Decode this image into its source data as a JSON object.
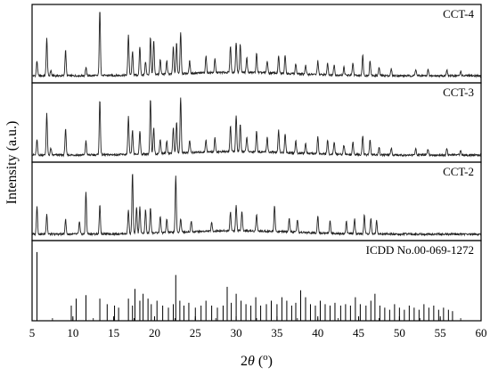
{
  "chart_data": {
    "type": "line",
    "xlabel_parts": [
      "2",
      "θ",
      " (",
      "o",
      ")"
    ],
    "ylabel": "Intensity (a.u.)",
    "xlim": [
      5,
      60
    ],
    "xticks": [
      5,
      10,
      15,
      20,
      25,
      30,
      35,
      40,
      45,
      50,
      55,
      60
    ],
    "grid": false,
    "legend": "none",
    "series": [
      {
        "name": "CCT-4",
        "baseline": 0.05,
        "peaks": [
          [
            5.6,
            0.22
          ],
          [
            6.8,
            0.55
          ],
          [
            7.3,
            0.08
          ],
          [
            9.1,
            0.38
          ],
          [
            11.6,
            0.12
          ],
          [
            13.3,
            0.99
          ],
          [
            16.8,
            0.6
          ],
          [
            17.3,
            0.35
          ],
          [
            18.2,
            0.42
          ],
          [
            18.9,
            0.2
          ],
          [
            19.5,
            0.55
          ],
          [
            19.9,
            0.5
          ],
          [
            20.7,
            0.22
          ],
          [
            21.5,
            0.2
          ],
          [
            22.3,
            0.4
          ],
          [
            22.7,
            0.45
          ],
          [
            23.2,
            0.62
          ],
          [
            24.3,
            0.18
          ],
          [
            26.3,
            0.25
          ],
          [
            27.4,
            0.2
          ],
          [
            29.3,
            0.4
          ],
          [
            30.0,
            0.45
          ],
          [
            30.5,
            0.42
          ],
          [
            31.3,
            0.22
          ],
          [
            32.5,
            0.28
          ],
          [
            33.8,
            0.18
          ],
          [
            35.2,
            0.25
          ],
          [
            36.0,
            0.28
          ],
          [
            37.3,
            0.15
          ],
          [
            38.5,
            0.13
          ],
          [
            40.0,
            0.2
          ],
          [
            41.2,
            0.18
          ],
          [
            42.0,
            0.15
          ],
          [
            43.2,
            0.12
          ],
          [
            44.3,
            0.18
          ],
          [
            45.5,
            0.3
          ],
          [
            46.4,
            0.22
          ],
          [
            47.5,
            0.12
          ],
          [
            49.0,
            0.1
          ],
          [
            52.0,
            0.1
          ],
          [
            53.5,
            0.09
          ],
          [
            55.8,
            0.09
          ],
          [
            57.5,
            0.07
          ]
        ]
      },
      {
        "name": "CCT-3",
        "baseline": 0.05,
        "peaks": [
          [
            5.6,
            0.22
          ],
          [
            6.8,
            0.6
          ],
          [
            7.3,
            0.1
          ],
          [
            9.1,
            0.38
          ],
          [
            11.6,
            0.2
          ],
          [
            13.3,
            0.8
          ],
          [
            16.8,
            0.55
          ],
          [
            17.3,
            0.35
          ],
          [
            18.2,
            0.35
          ],
          [
            19.5,
            0.8
          ],
          [
            19.9,
            0.38
          ],
          [
            20.7,
            0.22
          ],
          [
            21.5,
            0.18
          ],
          [
            22.3,
            0.38
          ],
          [
            22.7,
            0.45
          ],
          [
            23.2,
            0.82
          ],
          [
            24.3,
            0.18
          ],
          [
            26.3,
            0.18
          ],
          [
            27.4,
            0.2
          ],
          [
            29.3,
            0.38
          ],
          [
            30.0,
            0.52
          ],
          [
            30.5,
            0.4
          ],
          [
            31.3,
            0.22
          ],
          [
            32.5,
            0.3
          ],
          [
            33.8,
            0.22
          ],
          [
            35.2,
            0.32
          ],
          [
            36.0,
            0.28
          ],
          [
            37.3,
            0.18
          ],
          [
            38.5,
            0.15
          ],
          [
            40.0,
            0.25
          ],
          [
            41.2,
            0.2
          ],
          [
            42.0,
            0.18
          ],
          [
            43.2,
            0.14
          ],
          [
            44.3,
            0.18
          ],
          [
            45.5,
            0.28
          ],
          [
            46.4,
            0.22
          ],
          [
            47.5,
            0.12
          ],
          [
            49.0,
            0.1
          ],
          [
            52.0,
            0.1
          ],
          [
            53.5,
            0.09
          ],
          [
            55.8,
            0.1
          ],
          [
            57.5,
            0.07
          ]
        ]
      },
      {
        "name": "CCT-2",
        "baseline": 0.04,
        "peaks": [
          [
            5.6,
            0.42
          ],
          [
            6.8,
            0.3
          ],
          [
            9.1,
            0.22
          ],
          [
            10.8,
            0.18
          ],
          [
            11.6,
            0.62
          ],
          [
            13.3,
            0.42
          ],
          [
            16.8,
            0.35
          ],
          [
            17.3,
            0.9
          ],
          [
            17.8,
            0.38
          ],
          [
            18.2,
            0.4
          ],
          [
            18.9,
            0.35
          ],
          [
            19.5,
            0.38
          ],
          [
            20.7,
            0.25
          ],
          [
            21.5,
            0.2
          ],
          [
            22.6,
            0.82
          ],
          [
            23.2,
            0.2
          ],
          [
            24.5,
            0.16
          ],
          [
            27.0,
            0.12
          ],
          [
            29.3,
            0.28
          ],
          [
            30.0,
            0.38
          ],
          [
            30.7,
            0.3
          ],
          [
            32.5,
            0.25
          ],
          [
            34.7,
            0.38
          ],
          [
            36.5,
            0.2
          ],
          [
            37.5,
            0.18
          ],
          [
            40.0,
            0.26
          ],
          [
            41.5,
            0.18
          ],
          [
            43.5,
            0.18
          ],
          [
            44.5,
            0.22
          ],
          [
            45.7,
            0.28
          ],
          [
            46.5,
            0.24
          ],
          [
            47.2,
            0.2
          ]
        ]
      },
      {
        "name": "ICDD No.00-069-1272",
        "type": "stick",
        "sticks": [
          [
            5.6,
            0.95
          ],
          [
            9.8,
            0.18
          ],
          [
            10.4,
            0.28
          ],
          [
            11.6,
            0.33
          ],
          [
            13.3,
            0.28
          ],
          [
            14.2,
            0.2
          ],
          [
            15.1,
            0.18
          ],
          [
            15.6,
            0.15
          ],
          [
            16.8,
            0.28
          ],
          [
            17.3,
            0.18
          ],
          [
            17.6,
            0.42
          ],
          [
            18.2,
            0.25
          ],
          [
            18.6,
            0.35
          ],
          [
            19.2,
            0.28
          ],
          [
            19.6,
            0.2
          ],
          [
            20.3,
            0.25
          ],
          [
            21.0,
            0.18
          ],
          [
            21.7,
            0.15
          ],
          [
            22.3,
            0.2
          ],
          [
            22.6,
            0.62
          ],
          [
            23.1,
            0.25
          ],
          [
            23.6,
            0.18
          ],
          [
            24.2,
            0.22
          ],
          [
            25.0,
            0.15
          ],
          [
            25.7,
            0.18
          ],
          [
            26.3,
            0.25
          ],
          [
            27.0,
            0.18
          ],
          [
            27.7,
            0.15
          ],
          [
            28.4,
            0.18
          ],
          [
            28.9,
            0.45
          ],
          [
            29.4,
            0.22
          ],
          [
            30.0,
            0.35
          ],
          [
            30.6,
            0.25
          ],
          [
            31.2,
            0.2
          ],
          [
            31.8,
            0.18
          ],
          [
            32.4,
            0.3
          ],
          [
            33.0,
            0.18
          ],
          [
            33.7,
            0.2
          ],
          [
            34.3,
            0.25
          ],
          [
            35.0,
            0.2
          ],
          [
            35.6,
            0.3
          ],
          [
            36.2,
            0.25
          ],
          [
            36.8,
            0.18
          ],
          [
            37.3,
            0.22
          ],
          [
            37.9,
            0.4
          ],
          [
            38.5,
            0.3
          ],
          [
            39.1,
            0.2
          ],
          [
            39.7,
            0.18
          ],
          [
            40.3,
            0.25
          ],
          [
            40.9,
            0.2
          ],
          [
            41.5,
            0.18
          ],
          [
            42.1,
            0.22
          ],
          [
            42.8,
            0.18
          ],
          [
            43.4,
            0.2
          ],
          [
            44.0,
            0.18
          ],
          [
            44.6,
            0.3
          ],
          [
            45.2,
            0.2
          ],
          [
            45.9,
            0.18
          ],
          [
            46.5,
            0.25
          ],
          [
            47.0,
            0.35
          ],
          [
            47.6,
            0.18
          ],
          [
            48.2,
            0.15
          ],
          [
            48.8,
            0.12
          ],
          [
            49.4,
            0.2
          ],
          [
            50.0,
            0.15
          ],
          [
            50.6,
            0.12
          ],
          [
            51.2,
            0.18
          ],
          [
            51.8,
            0.15
          ],
          [
            52.4,
            0.12
          ],
          [
            53.0,
            0.2
          ],
          [
            53.6,
            0.15
          ],
          [
            54.2,
            0.18
          ],
          [
            54.8,
            0.12
          ],
          [
            55.4,
            0.15
          ],
          [
            56.0,
            0.12
          ],
          [
            56.5,
            0.1
          ]
        ]
      }
    ]
  }
}
